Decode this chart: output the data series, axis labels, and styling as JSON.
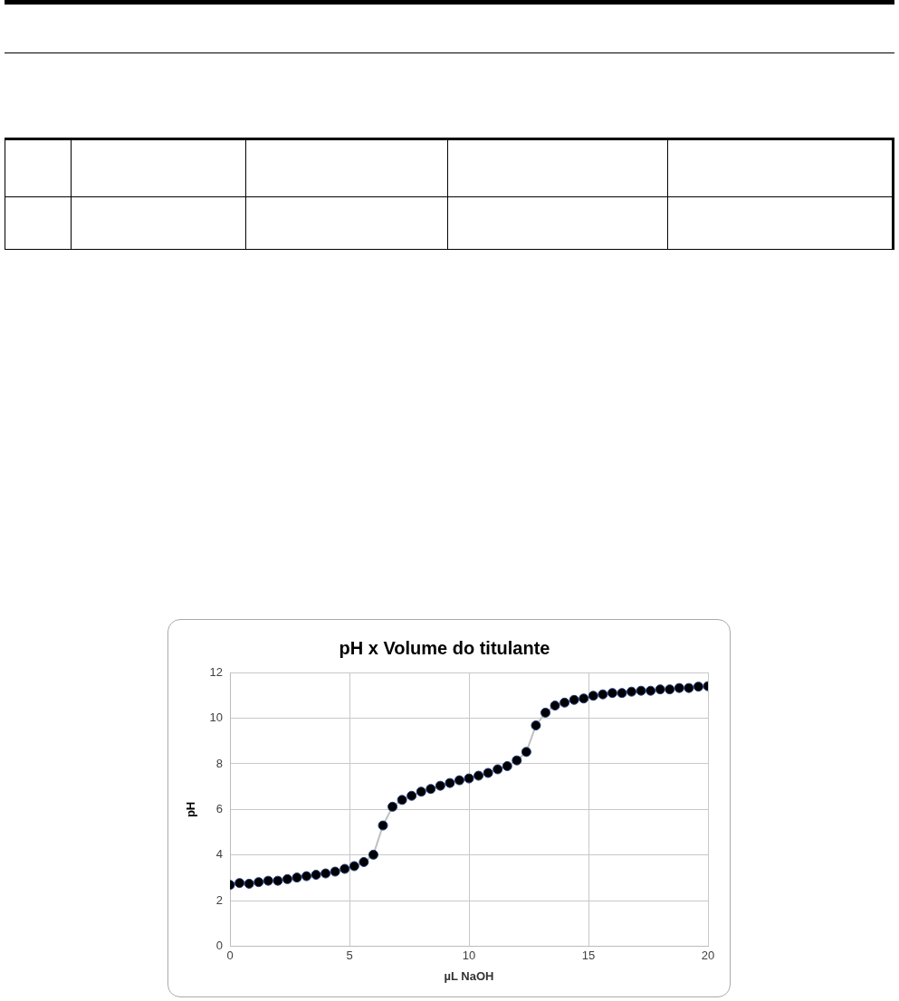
{
  "chart_data": {
    "type": "line",
    "title": "pH x Volume do titulante",
    "xlabel": "µL NaOH",
    "ylabel": "pH",
    "x": [
      0,
      0.4,
      0.8,
      1.2,
      1.6,
      2.0,
      2.4,
      2.8,
      3.2,
      3.6,
      4.0,
      4.4,
      4.8,
      5.2,
      5.6,
      6.0,
      6.4,
      6.8,
      7.2,
      7.6,
      8.0,
      8.4,
      8.8,
      9.2,
      9.6,
      10.0,
      10.4,
      10.8,
      11.2,
      11.6,
      12.0,
      12.4,
      12.8,
      13.2,
      13.6,
      14.0,
      14.4,
      14.8,
      15.2,
      15.6,
      16.0,
      16.4,
      16.8,
      17.2,
      17.6,
      18.0,
      18.4,
      18.8,
      19.2,
      19.6,
      20.0
    ],
    "series": [
      {
        "color": "#000000",
        "values": [
          2.7,
          2.78,
          2.75,
          2.82,
          2.88,
          2.88,
          2.95,
          3.02,
          3.08,
          3.14,
          3.2,
          3.28,
          3.4,
          3.52,
          3.7,
          4.02,
          5.3,
          6.12,
          6.42,
          6.6,
          6.78,
          6.9,
          7.04,
          7.16,
          7.28,
          7.36,
          7.48,
          7.6,
          7.76,
          7.9,
          8.15,
          8.52,
          9.68,
          10.24,
          10.55,
          10.68,
          10.8,
          10.86,
          10.98,
          11.04,
          11.1,
          11.1,
          11.16,
          11.2,
          11.2,
          11.26,
          11.26,
          11.32,
          11.32,
          11.38,
          11.4
        ]
      }
    ],
    "xlim": [
      0,
      20
    ],
    "xticks": [
      0,
      5,
      10,
      15,
      20
    ],
    "ylim": [
      0,
      12
    ],
    "yticks": [
      0,
      2,
      4,
      6,
      8,
      10,
      12
    ],
    "grid": true,
    "legend": false,
    "marker": "circle",
    "line_style": "solid"
  }
}
